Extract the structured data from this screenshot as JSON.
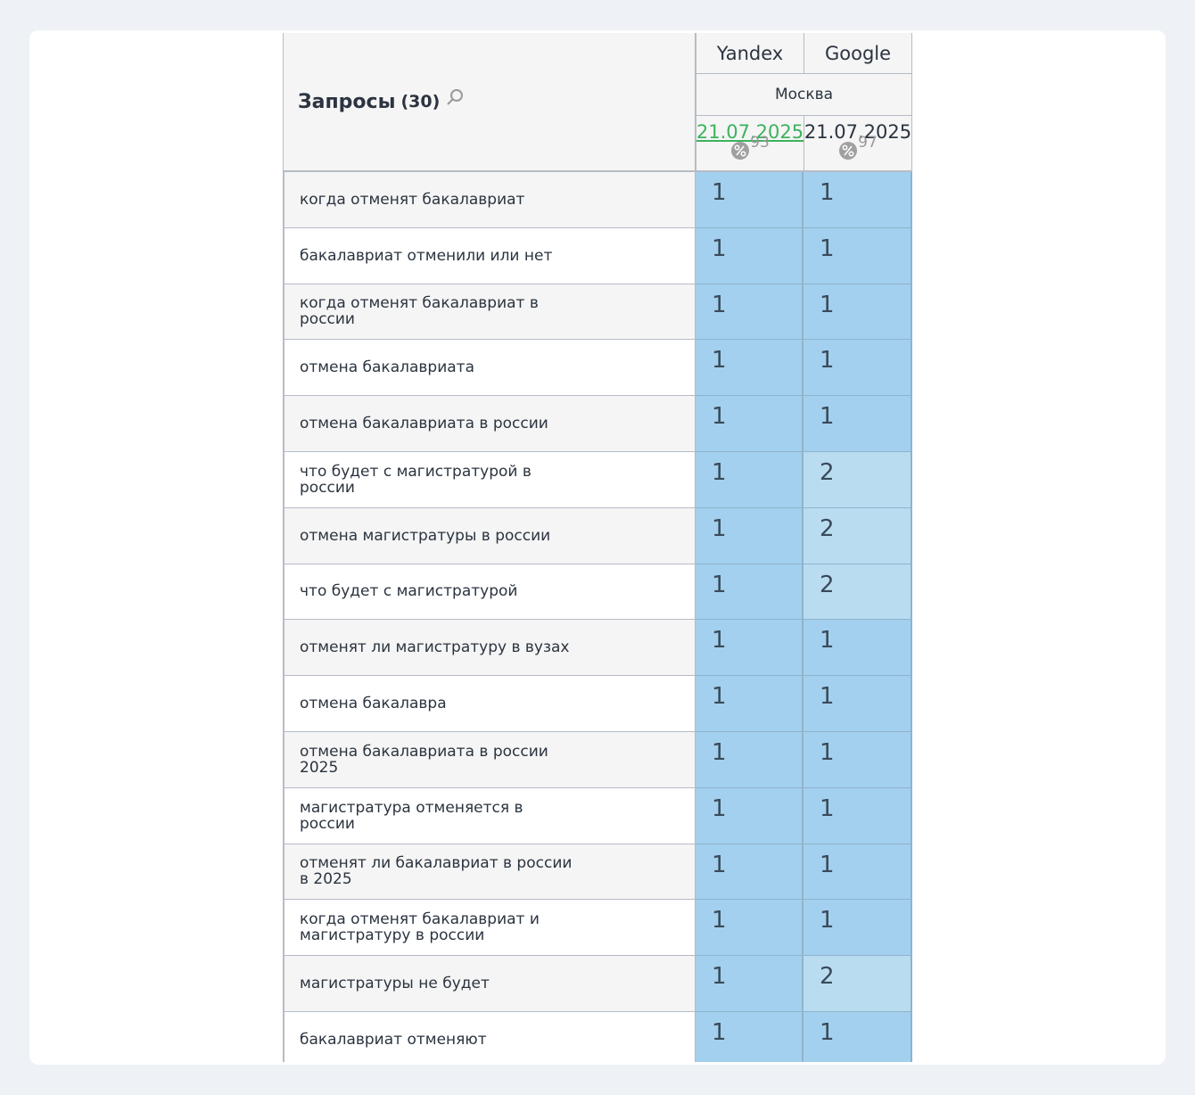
{
  "header": {
    "title": "Запросы",
    "count": "(30)",
    "engines": [
      "Yandex",
      "Google"
    ],
    "region": "Москва",
    "dates": [
      "21.07.2025",
      "21.07.2025"
    ],
    "percents": [
      93,
      97
    ]
  },
  "rows": [
    {
      "query": [
        "когда отменят бакалавриат"
      ],
      "yandex": 1,
      "google": 1
    },
    {
      "query": [
        "бакалавриат отменили или нет"
      ],
      "yandex": 1,
      "google": 1
    },
    {
      "query": [
        "когда отменят бакалавриат в",
        "россии"
      ],
      "yandex": 1,
      "google": 1
    },
    {
      "query": [
        "отмена бакалавриата"
      ],
      "yandex": 1,
      "google": 1
    },
    {
      "query": [
        "отмена бакалавриата в россии"
      ],
      "yandex": 1,
      "google": 1
    },
    {
      "query": [
        "что будет с магистратурой в",
        "россии"
      ],
      "yandex": 1,
      "google": 2
    },
    {
      "query": [
        "отмена магистратуры в россии"
      ],
      "yandex": 1,
      "google": 2
    },
    {
      "query": [
        "что будет с магистратурой"
      ],
      "yandex": 1,
      "google": 2
    },
    {
      "query": [
        "отменят ли магистратуру в вузах"
      ],
      "yandex": 1,
      "google": 1
    },
    {
      "query": [
        "отмена бакалавра"
      ],
      "yandex": 1,
      "google": 1
    },
    {
      "query": [
        "отмена бакалавриата в россии",
        "2025"
      ],
      "yandex": 1,
      "google": 1
    },
    {
      "query": [
        "магистратура отменяется в",
        "россии"
      ],
      "yandex": 1,
      "google": 1
    },
    {
      "query": [
        "отменят ли бакалавриат в россии",
        "в 2025"
      ],
      "yandex": 1,
      "google": 1
    },
    {
      "query": [
        "когда отменят бакалавриат и",
        "магистратуру в россии"
      ],
      "yandex": 1,
      "google": 1
    },
    {
      "query": [
        "магистратуры не будет"
      ],
      "yandex": 1,
      "google": 2
    },
    {
      "query": [
        "бакалавриат отменяют"
      ],
      "yandex": 1,
      "google": 1
    }
  ]
}
